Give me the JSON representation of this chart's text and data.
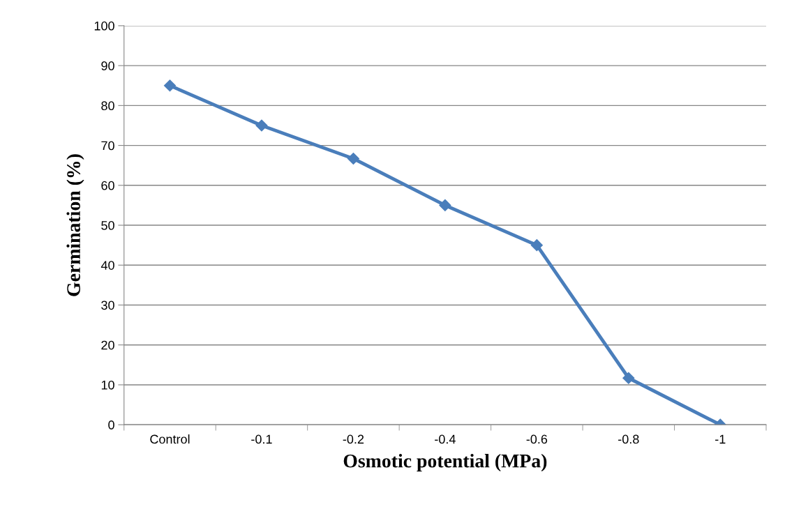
{
  "chart_data": {
    "type": "line",
    "xlabel": "Osmotic potential (MPa)",
    "ylabel": "Germination (%)",
    "categories": [
      "Control",
      "-0.1",
      "-0.2",
      "-0.4",
      "-0.6",
      "-0.8",
      "-1"
    ],
    "series": [
      {
        "color": "#4a7ebb",
        "values": [
          85,
          75,
          66.7,
          55,
          45,
          11.7,
          0
        ]
      }
    ],
    "ylim": [
      0,
      100
    ],
    "yticks": [
      0,
      10,
      20,
      30,
      40,
      50,
      60,
      70,
      80,
      90,
      100
    ],
    "grid": "y",
    "marker": "diamond",
    "line_style": "solid"
  }
}
